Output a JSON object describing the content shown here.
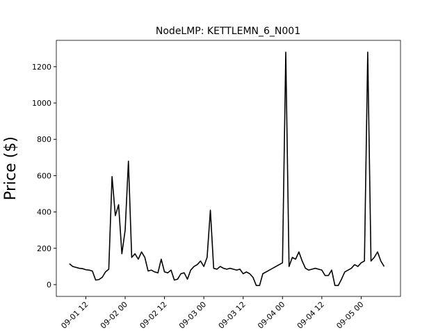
{
  "chart_data": {
    "type": "line",
    "title": "NodeLMP: KETTLEMN_6_N001",
    "ylabel": "Price ($)",
    "color": "#000000",
    "x": [
      "09-01 07",
      "09-01 08",
      "09-01 09",
      "09-01 10",
      "09-01 11",
      "09-01 12",
      "09-01 13",
      "09-01 14",
      "09-01 15",
      "09-01 16",
      "09-01 17",
      "09-01 18",
      "09-01 19",
      "09-01 20",
      "09-01 21",
      "09-01 22",
      "09-01 23",
      "09-02 00",
      "09-02 01",
      "09-02 02",
      "09-02 03",
      "09-02 04",
      "09-02 05",
      "09-02 06",
      "09-02 07",
      "09-02 08",
      "09-02 09",
      "09-02 10",
      "09-02 11",
      "09-02 12",
      "09-02 13",
      "09-02 14",
      "09-02 15",
      "09-02 16",
      "09-02 17",
      "09-02 18",
      "09-02 19",
      "09-02 20",
      "09-02 21",
      "09-02 22",
      "09-02 23",
      "09-03 00",
      "09-03 01",
      "09-03 02",
      "09-03 03",
      "09-03 04",
      "09-03 05",
      "09-03 06",
      "09-03 07",
      "09-03 08",
      "09-03 09",
      "09-03 10",
      "09-03 11",
      "09-03 12",
      "09-03 13",
      "09-03 14",
      "09-03 15",
      "09-03 16",
      "09-03 17",
      "09-03 18",
      "09-03 19",
      "09-03 20",
      "09-03 21",
      "09-03 22",
      "09-03 23",
      "09-04 00",
      "09-04 01",
      "09-04 02",
      "09-04 03",
      "09-04 04",
      "09-04 05",
      "09-04 06",
      "09-04 07",
      "09-04 08",
      "09-04 09",
      "09-04 10",
      "09-04 11",
      "09-04 12",
      "09-04 13",
      "09-04 14",
      "09-04 15",
      "09-04 16",
      "09-04 17",
      "09-04 18",
      "09-04 19",
      "09-04 20",
      "09-04 21",
      "09-04 22",
      "09-04 23",
      "09-05 00",
      "09-05 01",
      "09-05 02",
      "09-05 03",
      "09-05 04",
      "09-05 05",
      "09-05 06",
      "09-05 07"
    ],
    "values": [
      115,
      100,
      95,
      90,
      88,
      82,
      80,
      75,
      25,
      28,
      40,
      70,
      85,
      595,
      380,
      440,
      170,
      300,
      680,
      150,
      170,
      140,
      180,
      150,
      75,
      80,
      70,
      65,
      140,
      70,
      65,
      80,
      25,
      30,
      60,
      65,
      30,
      80,
      100,
      110,
      130,
      100,
      150,
      410,
      90,
      85,
      100,
      90,
      85,
      90,
      85,
      80,
      85,
      60,
      70,
      60,
      40,
      -5,
      -5,
      60,
      70,
      80,
      90,
      100,
      110,
      120,
      1280,
      100,
      150,
      140,
      180,
      130,
      90,
      80,
      85,
      90,
      85,
      80,
      50,
      50,
      80,
      -5,
      -5,
      30,
      70,
      80,
      90,
      110,
      100,
      120,
      130,
      1280,
      130,
      150,
      180,
      130,
      100
    ],
    "xlim": [
      "09-01 03",
      "09-05 12"
    ],
    "xticks": [
      "09-01 12",
      "09-02 00",
      "09-02 12",
      "09-03 00",
      "09-03 12",
      "09-04 00",
      "09-04 12",
      "09-05 00"
    ],
    "ylim": [
      -65,
      1345
    ],
    "yticks": [
      0,
      200,
      400,
      600,
      800,
      1000,
      1200
    ]
  }
}
